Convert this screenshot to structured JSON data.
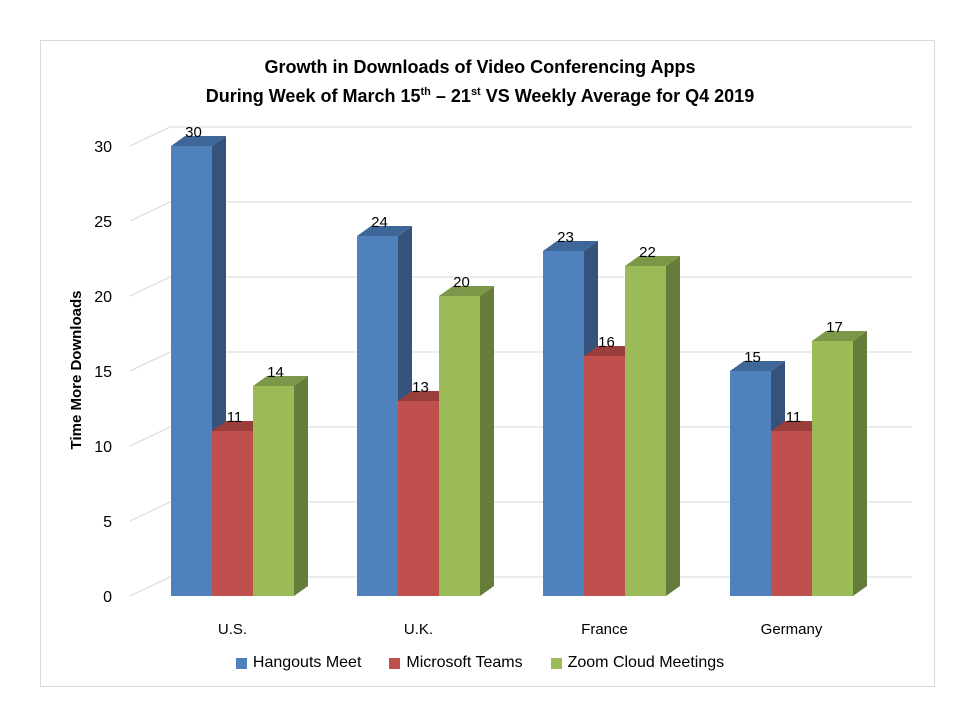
{
  "chart_data": {
    "type": "bar",
    "style": "3d-clustered-column",
    "title_line1": "Growth in Downloads of Video Conferencing Apps",
    "title_line2": {
      "part1": "During Week of March 15",
      "sup1": "th",
      "part2": " – 21",
      "sup2": "st",
      "part3": " VS Weekly Average for Q4 2019"
    },
    "xlabel": "",
    "ylabel": "Time More Downloads",
    "ylim": [
      0,
      30
    ],
    "yticks": [
      0,
      5,
      10,
      15,
      20,
      25,
      30
    ],
    "grid": true,
    "legend_position": "bottom",
    "categories": [
      "U.S.",
      "U.K.",
      "France",
      "Germany"
    ],
    "series": [
      {
        "name": "Hangouts Meet",
        "values": [
          30,
          24,
          23,
          15
        ],
        "color": "#4F81BD",
        "side": "#34527C",
        "top": "#3F6699"
      },
      {
        "name": "Microsoft Teams",
        "values": [
          11,
          13,
          16,
          11
        ],
        "color": "#C0504D",
        "side": "#7E3432",
        "top": "#9A3E3B"
      },
      {
        "name": "Zoom Cloud Meetings",
        "values": [
          14,
          20,
          22,
          17
        ],
        "color": "#9BBB59",
        "side": "#667C3A",
        "top": "#7C9747"
      }
    ]
  }
}
